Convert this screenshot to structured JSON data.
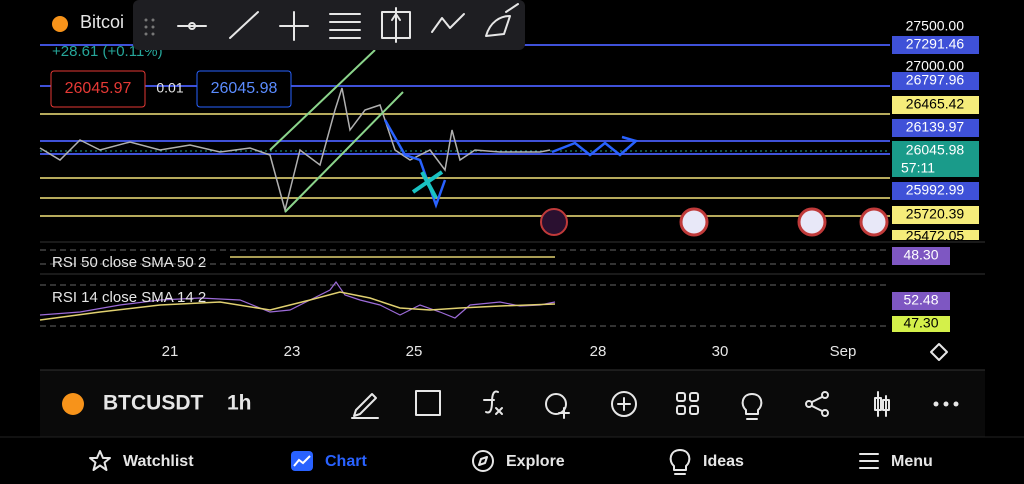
{
  "header": {
    "symbol": "Bitcoi",
    "change": "+28.61 (+0.11%)",
    "sell_price": "26045.97",
    "quantity": "0.01",
    "buy_price": "26045.98"
  },
  "price_axis": [
    "27500.00",
    "27291.46",
    "27000.00",
    "26797.96",
    "26465.42",
    "26139.97",
    "26045.98",
    "25992.99",
    "25720.39",
    "25472.05"
  ],
  "countdown": "57:11",
  "indicators": [
    {
      "label": "RSI 50 close SMA 50 2",
      "values": [
        "48.30"
      ]
    },
    {
      "label": "RSI 14 close SMA 14 2",
      "values": [
        "52.48",
        "47.30"
      ]
    }
  ],
  "time_axis": [
    "21",
    "23",
    "25",
    "28",
    "30",
    "Sep"
  ],
  "toolbar": {
    "symbol": "BTCUSDT",
    "interval": "1h"
  },
  "nav": [
    "Watchlist",
    "Chart",
    "Explore",
    "Ideas",
    "Menu"
  ]
}
